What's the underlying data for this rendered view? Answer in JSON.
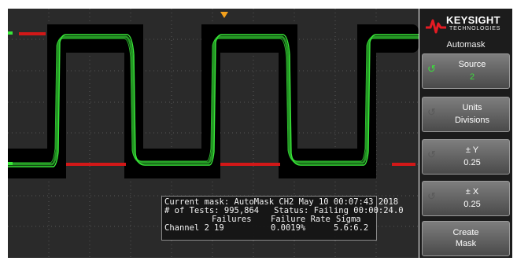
{
  "brand": {
    "name": "KEYSIGHT",
    "sub": "TECHNOLOGIES",
    "logo_color": "#e41b23"
  },
  "menu": {
    "title": "Automask",
    "softkeys": [
      {
        "label": "Source",
        "value": "2",
        "value_color": "#3ddc3d",
        "knob_active": true
      },
      {
        "label": "Units",
        "value": "Divisions",
        "knob_active": false
      },
      {
        "label": "± Y",
        "value": "0.25",
        "knob_active": false
      },
      {
        "label": "± X",
        "value": "0.25",
        "knob_active": false
      },
      {
        "label": "Create",
        "value": "Mask",
        "knob_active": false
      }
    ]
  },
  "stats": {
    "mask_line": "Current mask: AutoMask CH2 May 10 00:07:43 2018",
    "tests_label": "# of Tests:",
    "tests_value": "995,864",
    "status_label": "Status:",
    "status_value": "Failing",
    "elapsed": "00:00:24.0",
    "header_failures": "Failures",
    "header_rate": "Failure Rate",
    "header_sigma": "Sigma",
    "channel": "Channel 2",
    "failures": "19",
    "rate": "0.0019%",
    "sigma": "5.6:6.2"
  },
  "colors": {
    "trace": "#38e838",
    "mask": "#000000",
    "failure": "#d21818",
    "trigger_marker": "#f3a01c",
    "grid": "#555555"
  }
}
